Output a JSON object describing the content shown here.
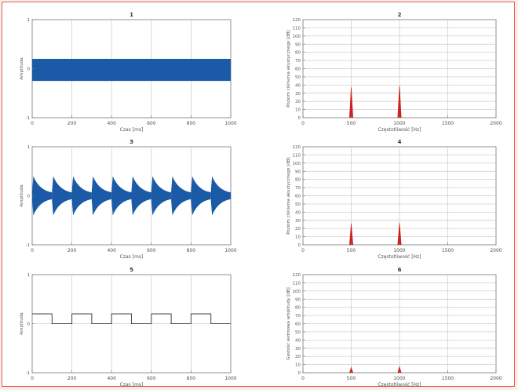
{
  "chart_data": [
    {
      "type": "area",
      "title": "1",
      "xlabel": "Czas [ms]",
      "ylabel": "Amplituda",
      "xlim": [
        0,
        1000
      ],
      "ylim": [
        -1,
        1
      ],
      "xticks": [
        0,
        200,
        400,
        600,
        800,
        1000
      ],
      "yticks": [
        -1,
        0,
        1
      ],
      "xtick_labels": [
        "0",
        "200",
        "400",
        "600",
        "800",
        "1000"
      ],
      "ytick_labels": [
        "-1",
        "0",
        "1"
      ],
      "grid": true,
      "signal": "constant-amplitude oscillation",
      "envelope": [
        {
          "x": 0,
          "upper": 0.2,
          "lower": -0.25
        },
        {
          "x": 1000,
          "upper": 0.2,
          "lower": -0.25
        }
      ],
      "color": "#1a5aa6"
    },
    {
      "type": "bar",
      "title": "2",
      "xlabel": "Częstotliwość [Hz]",
      "ylabel": "Poziom ciśnienia akustycznego [dB]",
      "xlim": [
        0,
        2000
      ],
      "ylim": [
        0,
        120
      ],
      "xticks": [
        0,
        500,
        1000,
        1500,
        2000
      ],
      "yticks": [
        0,
        10,
        20,
        30,
        40,
        50,
        60,
        70,
        80,
        90,
        100,
        110,
        120
      ],
      "xtick_labels": [
        "0",
        "500",
        "1000",
        "1500",
        "2000"
      ],
      "ytick_labels": [
        "0",
        "10",
        "20",
        "30",
        "40",
        "50",
        "60",
        "70",
        "80",
        "90",
        "100",
        "110",
        "120"
      ],
      "grid": true,
      "peaks": [
        {
          "x": 500,
          "y": 38
        },
        {
          "x": 1000,
          "y": 40
        }
      ],
      "color": "#cc2222"
    },
    {
      "type": "area",
      "title": "3",
      "xlabel": "Czas [ms]",
      "ylabel": "Amplituda",
      "xlim": [
        0,
        1000
      ],
      "ylim": [
        -1,
        1
      ],
      "xticks": [
        0,
        200,
        400,
        600,
        800,
        1000
      ],
      "yticks": [
        -1,
        0,
        1
      ],
      "xtick_labels": [
        "0",
        "200",
        "400",
        "600",
        "800",
        "1000"
      ],
      "ytick_labels": [
        "-1",
        "0",
        "1"
      ],
      "grid": true,
      "signal": "repeating decaying bursts",
      "burst_starts": [
        0,
        100,
        200,
        300,
        400,
        500,
        600,
        700,
        800,
        900
      ],
      "burst_peak": 0.4,
      "burst_floor": 0.1,
      "color": "#1a5aa6"
    },
    {
      "type": "bar",
      "title": "4",
      "xlabel": "Częstotliwość [Hz]",
      "ylabel": "Poziom ciśnienia akustycznego [dB]",
      "xlim": [
        0,
        2000
      ],
      "ylim": [
        0,
        120
      ],
      "xticks": [
        0,
        500,
        1000,
        1500,
        2000
      ],
      "yticks": [
        0,
        10,
        20,
        30,
        40,
        50,
        60,
        70,
        80,
        90,
        100,
        110,
        120
      ],
      "xtick_labels": [
        "0",
        "500",
        "1000",
        "1500",
        "2000"
      ],
      "ytick_labels": [
        "0",
        "10",
        "20",
        "30",
        "40",
        "50",
        "60",
        "70",
        "80",
        "90",
        "100",
        "110",
        "120"
      ],
      "grid": true,
      "peaks": [
        {
          "x": 500,
          "y": 27
        },
        {
          "x": 1000,
          "y": 28
        }
      ],
      "color": "#cc2222"
    },
    {
      "type": "line",
      "title": "5",
      "xlabel": "Czas [ms]",
      "ylabel": "Amplituda",
      "xlim": [
        0,
        1000
      ],
      "ylim": [
        -1,
        1
      ],
      "xticks": [
        0,
        200,
        400,
        600,
        800,
        1000
      ],
      "yticks": [
        -1,
        0,
        1
      ],
      "xtick_labels": [
        "0",
        "200",
        "400",
        "600",
        "800",
        "1000"
      ],
      "ytick_labels": [
        "-1",
        "0",
        "1"
      ],
      "grid": true,
      "signal": "square wave",
      "x": [
        0,
        100,
        100,
        200,
        200,
        300,
        300,
        400,
        400,
        500,
        500,
        600,
        600,
        700,
        700,
        800,
        800,
        900,
        900,
        1000
      ],
      "y": [
        0.2,
        0.2,
        0,
        0,
        0.2,
        0.2,
        0,
        0,
        0.2,
        0.2,
        0,
        0,
        0.2,
        0.2,
        0,
        0,
        0.2,
        0.2,
        0,
        0
      ],
      "color": "#444444"
    },
    {
      "type": "bar",
      "title": "6",
      "xlabel": "Częstotliwość [Hz]",
      "ylabel": "Gęstość widmowa amplitudy [dB]",
      "xlim": [
        0,
        2000
      ],
      "ylim": [
        0,
        120
      ],
      "xticks": [
        0,
        500,
        1000,
        1500,
        2000
      ],
      "yticks": [
        0,
        10,
        20,
        30,
        40,
        50,
        60,
        70,
        80,
        90,
        100,
        110,
        120
      ],
      "xtick_labels": [
        "0",
        "500",
        "1000",
        "1500",
        "2000"
      ],
      "ytick_labels": [
        "0",
        "10",
        "20",
        "30",
        "40",
        "50",
        "60",
        "70",
        "80",
        "90",
        "100",
        "110",
        "120"
      ],
      "grid": true,
      "peaks": [
        {
          "x": 500,
          "y": 8
        },
        {
          "x": 1000,
          "y": 9
        }
      ],
      "color": "#cc2222"
    }
  ]
}
